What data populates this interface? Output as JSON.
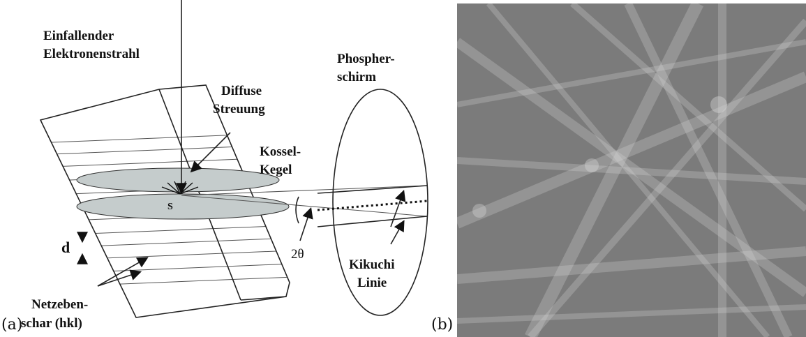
{
  "labels": {
    "incident_beam": [
      "Einfallender",
      "Elektronenstrahl"
    ],
    "diffuse": [
      "Diffuse",
      "Streuung"
    ],
    "screen": [
      "Phospher-",
      "schirm"
    ],
    "kossel": [
      "Kossel-",
      "Kegel"
    ],
    "source": "S",
    "spacing": "d",
    "angle": "2θ",
    "kikuchi": [
      "Kikuchi",
      "Linie"
    ],
    "planes": [
      "Netzeben-",
      "schar (hkl)"
    ]
  },
  "panels": {
    "a": "(a)",
    "b": "(b)"
  }
}
